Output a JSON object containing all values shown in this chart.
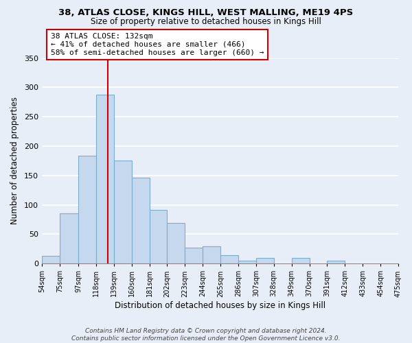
{
  "title1": "38, ATLAS CLOSE, KINGS HILL, WEST MALLING, ME19 4PS",
  "title2": "Size of property relative to detached houses in Kings Hill",
  "xlabel": "Distribution of detached houses by size in Kings Hill",
  "ylabel": "Number of detached properties",
  "bar_left_edges": [
    54,
    75,
    97,
    118,
    139,
    160,
    181,
    202,
    223,
    244,
    265,
    286,
    307,
    328,
    349,
    370,
    391,
    412,
    433,
    454
  ],
  "bar_widths": [
    21,
    22,
    21,
    21,
    21,
    21,
    21,
    21,
    21,
    21,
    21,
    21,
    21,
    21,
    21,
    21,
    21,
    21,
    21,
    21
  ],
  "bar_heights": [
    13,
    85,
    184,
    288,
    175,
    146,
    91,
    69,
    27,
    29,
    14,
    5,
    9,
    0,
    9,
    0,
    5,
    0,
    0,
    0
  ],
  "tick_labels": [
    "54sqm",
    "75sqm",
    "97sqm",
    "118sqm",
    "139sqm",
    "160sqm",
    "181sqm",
    "202sqm",
    "223sqm",
    "244sqm",
    "265sqm",
    "286sqm",
    "307sqm",
    "328sqm",
    "349sqm",
    "370sqm",
    "391sqm",
    "412sqm",
    "433sqm",
    "454sqm",
    "475sqm"
  ],
  "bar_color": "#c5d8ee",
  "bar_edge_color": "#7aaed0",
  "vline_x": 132,
  "vline_color": "#cc0000",
  "annotation_text": "38 ATLAS CLOSE: 132sqm\n← 41% of detached houses are smaller (466)\n58% of semi-detached houses are larger (660) →",
  "annotation_box_color": "#ffffff",
  "annotation_border_color": "#cc0000",
  "ylim": [
    0,
    350
  ],
  "yticks": [
    0,
    50,
    100,
    150,
    200,
    250,
    300,
    350
  ],
  "footer_text": "Contains HM Land Registry data © Crown copyright and database right 2024.\nContains public sector information licensed under the Open Government Licence v3.0.",
  "bg_color": "#e8eef8",
  "plot_bg_color": "#e8eef8",
  "grid_color": "#ffffff"
}
